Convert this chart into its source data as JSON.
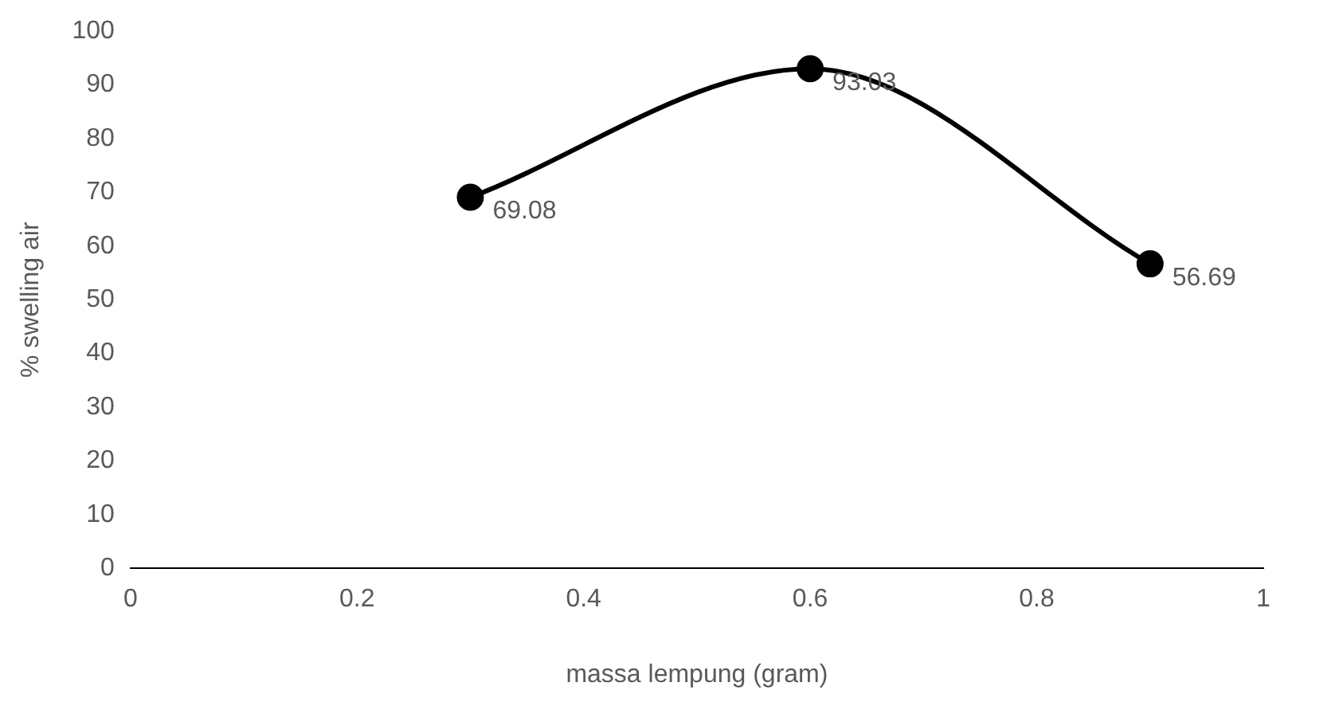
{
  "chart_data": {
    "type": "scatter",
    "xlabel": "massa lempung (gram)",
    "ylabel": "% swelling air",
    "x": [
      0.3,
      0.6,
      0.9
    ],
    "series": [
      {
        "color": "#000000",
        "values": [
          69.08,
          93.03,
          56.69
        ],
        "type": "line"
      }
    ],
    "xlim": [
      0,
      1
    ],
    "xticks": [
      0,
      0.2,
      0.4,
      0.6,
      0.8,
      1
    ],
    "ylim": [
      0,
      100
    ],
    "yticks": [
      0,
      10,
      20,
      30,
      40,
      50,
      60,
      70,
      80,
      90,
      100
    ],
    "grid": false,
    "legend": false,
    "marker": "circle",
    "line_style": "solid",
    "data_labels": true
  }
}
